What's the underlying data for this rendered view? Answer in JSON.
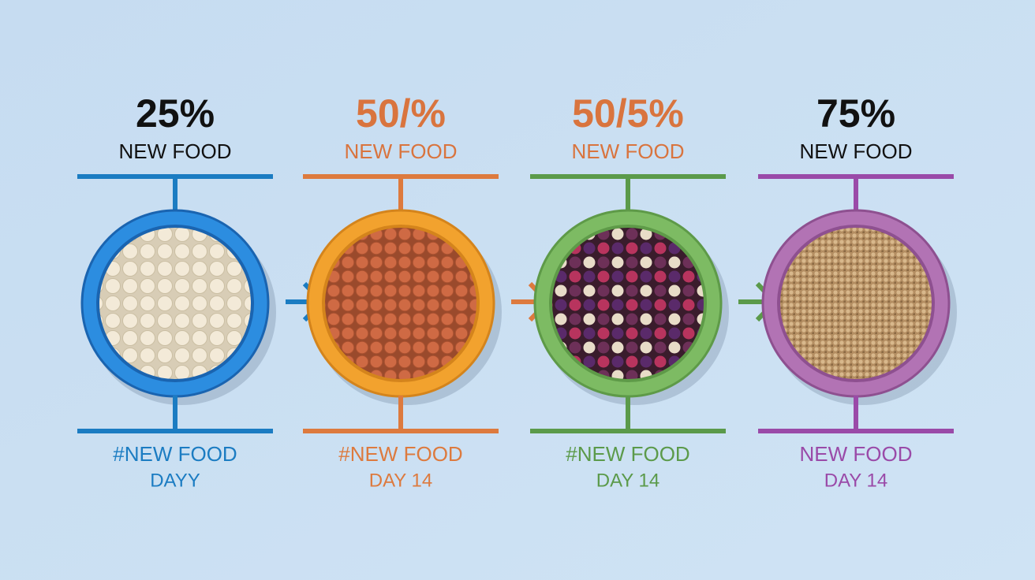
{
  "steps": [
    {
      "percent": "25%",
      "label": "NEW FOOD",
      "bottom_label": "#NEW FOOD",
      "day": "DAYY"
    },
    {
      "percent": "50/%",
      "label": "NEW FOOD",
      "bottom_label": "#NEW FOOD",
      "day": "DAY 14"
    },
    {
      "percent": "50/5%",
      "label": "NEW FOOD",
      "bottom_label": "#NEW FOOD",
      "day": "DAY 14"
    },
    {
      "percent": "75%",
      "label": "NEW FOOD",
      "bottom_label": "NEW FOOD",
      "day": "DAY 14"
    }
  ]
}
